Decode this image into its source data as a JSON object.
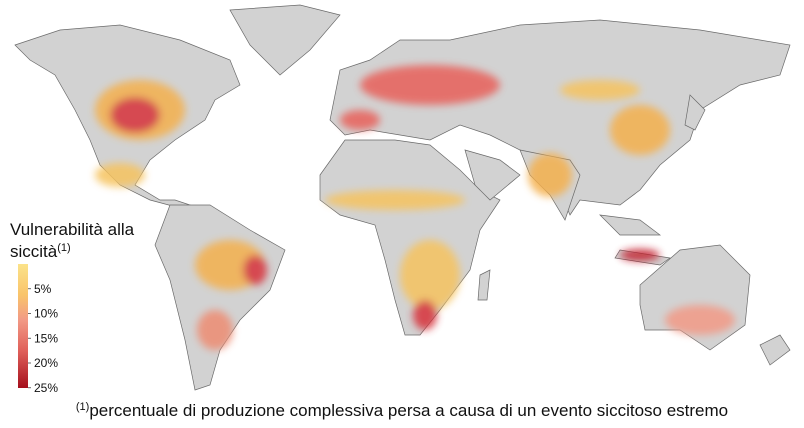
{
  "legend": {
    "title_lines": [
      "Vulnerabilità alla",
      "siccità"
    ],
    "note_marker": "(1)",
    "ticks": [
      {
        "value": 5,
        "label": "5%"
      },
      {
        "value": 10,
        "label": "10%"
      },
      {
        "value": 15,
        "label": "15%"
      },
      {
        "value": 20,
        "label": "20%"
      },
      {
        "value": 25,
        "label": "25%"
      }
    ]
  },
  "footnote": {
    "marker": "(1)",
    "text": "percentuale di produzione complessiva persa a causa di un evento siccitoso estremo"
  }
}
